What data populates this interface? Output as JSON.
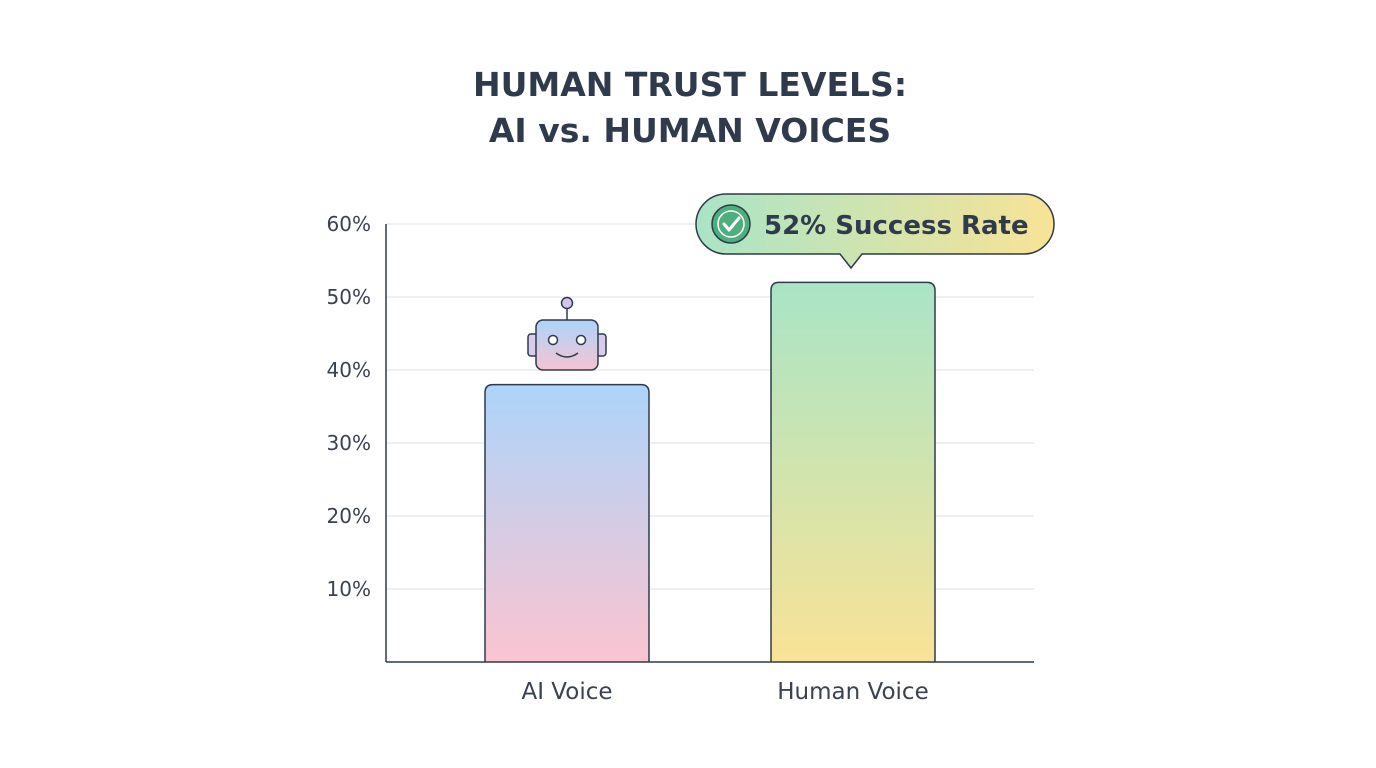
{
  "chart_data": {
    "type": "bar",
    "title_lines": [
      "HUMAN TRUST LEVELS:",
      "AI vs. HUMAN VOICES"
    ],
    "categories": [
      "AI Voice",
      "Human Voice"
    ],
    "values": [
      38,
      52
    ],
    "ylim": [
      0,
      60
    ],
    "yticks": [
      10,
      20,
      30,
      40,
      50,
      60
    ],
    "ytick_labels": [
      "10%",
      "20%",
      "30%",
      "40%",
      "50%",
      "60%"
    ],
    "grid": true,
    "xlabel": "",
    "ylabel": "",
    "annotation": {
      "text": "52% Success Rate",
      "target": "Human Voice",
      "icon": "check-circle-icon"
    },
    "decoration": {
      "icon": "robot-icon",
      "target": "AI Voice"
    },
    "colors": {
      "ai_gradient": [
        "#add4fa",
        "#fbc4d0"
      ],
      "human_gradient": [
        "#a9e4c6",
        "#f9e396"
      ],
      "text": "#2f3a4c",
      "outline": "#2f3a4c",
      "check": "#4caf7c"
    }
  }
}
